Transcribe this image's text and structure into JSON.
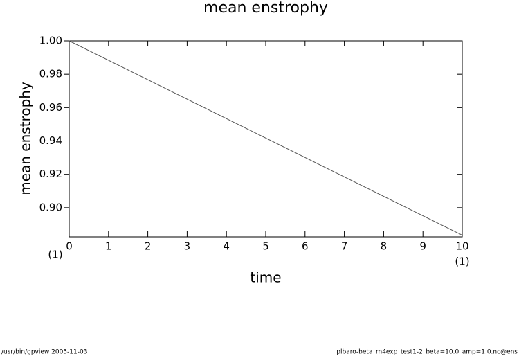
{
  "chart_data": {
    "type": "line",
    "title": "mean enstrophy",
    "x_label": "time",
    "y_label": "mean enstrophy",
    "x_unit": "(1)",
    "x": [
      0,
      10
    ],
    "series": [
      {
        "name": "mean enstrophy",
        "color": "#555555",
        "values": [
          1.0,
          0.8835
        ]
      }
    ],
    "xlim": [
      0,
      10
    ],
    "xticks": [
      0,
      1,
      2,
      3,
      4,
      5,
      6,
      7,
      8,
      9,
      10
    ],
    "ylim": [
      0.8825,
      1.0
    ],
    "yticks": [
      {
        "value": 0.9,
        "label": "0.90"
      },
      0.92,
      0.94,
      0.96,
      0.98,
      {
        "value": 1.0,
        "label": "1.00"
      }
    ],
    "footer": {
      "left": "/usr/bin/gpview  2005-11-03",
      "right": "plbaro-beta_rn4exp_test1-2_beta=10.0_amp=1.0.nc@ens"
    }
  }
}
